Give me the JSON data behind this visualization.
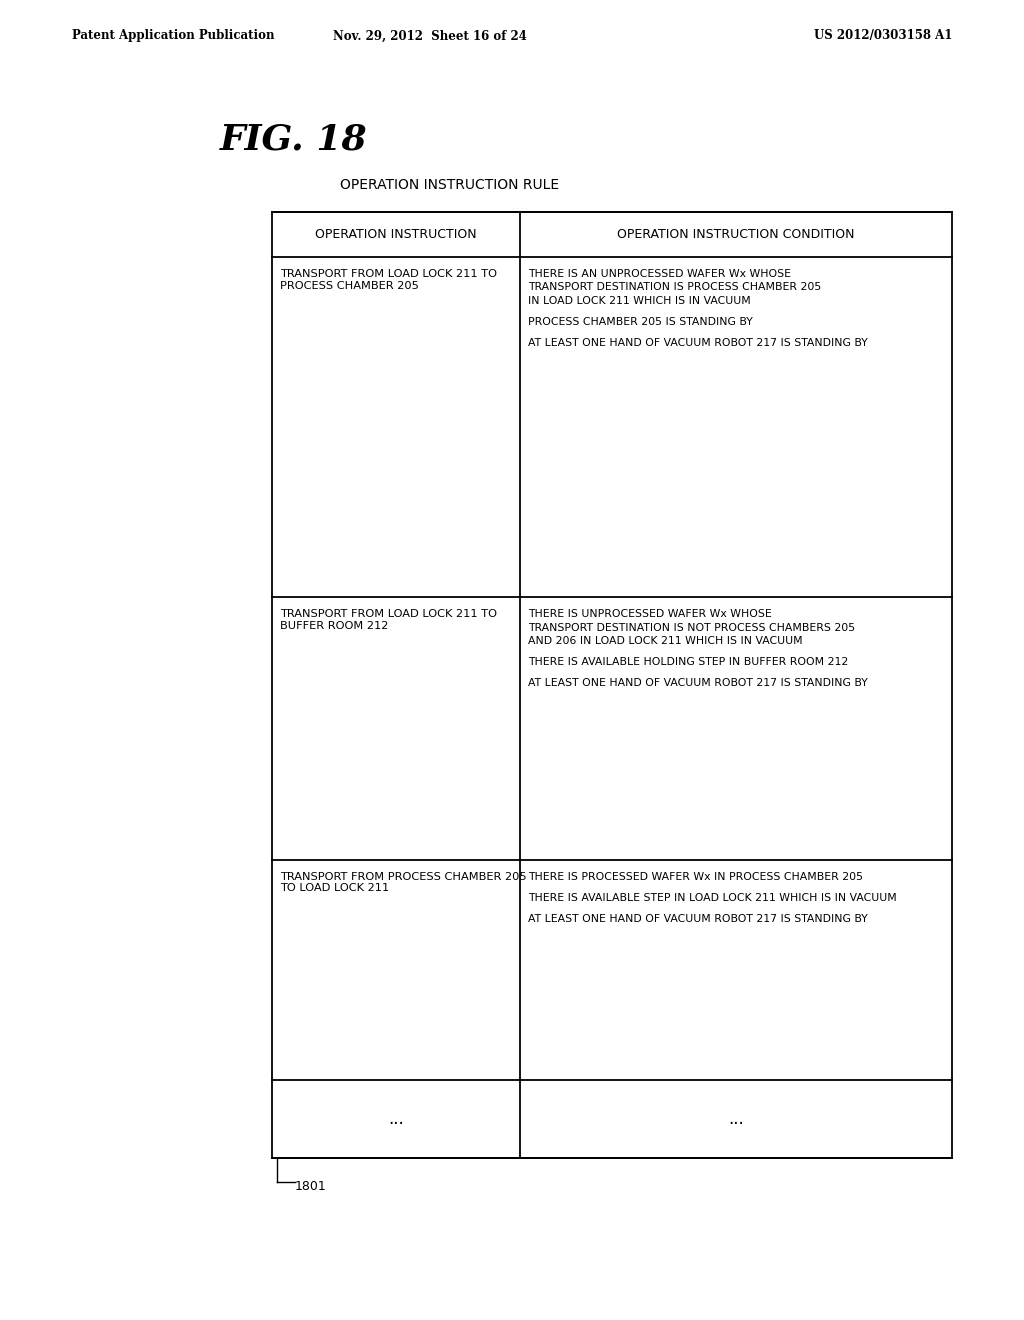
{
  "header_text_left": "Patent Application Publication",
  "header_text_mid": "Nov. 29, 2012  Sheet 16 of 24",
  "header_text_right": "US 2012/0303158 A1",
  "fig_label": "FIG. 18",
  "title": "OPERATION INSTRUCTION RULE",
  "table_label": "1801",
  "background_color": "#ffffff",
  "col1_header": "OPERATION INSTRUCTION",
  "col2_header": "OPERATION INSTRUCTION CONDITION",
  "rows": [
    {
      "col1": "TRANSPORT FROM LOAD LOCK 211 TO\nPROCESS CHAMBER 205",
      "col2_lines": [
        "THERE IS AN UNPROCESSED WAFER Wx WHOSE",
        "TRANSPORT DESTINATION IS PROCESS CHAMBER 205",
        "IN LOAD LOCK 211 WHICH IS IN VACUUM",
        "",
        "PROCESS CHAMBER 205 IS STANDING BY",
        "",
        "AT LEAST ONE HAND OF VACUUM ROBOT 217 IS STANDING BY"
      ]
    },
    {
      "col1": "TRANSPORT FROM LOAD LOCK 211 TO\nBUFFER ROOM 212",
      "col2_lines": [
        "THERE IS UNPROCESSED WAFER Wx WHOSE",
        "TRANSPORT DESTINATION IS NOT PROCESS CHAMBERS 205",
        "AND 206 IN LOAD LOCK 211 WHICH IS IN VACUUM",
        "",
        "THERE IS AVAILABLE HOLDING STEP IN BUFFER ROOM 212",
        "",
        "AT LEAST ONE HAND OF VACUUM ROBOT 217 IS STANDING BY"
      ]
    },
    {
      "col1": "TRANSPORT FROM PROCESS CHAMBER 205\nTO LOAD LOCK 211",
      "col2_lines": [
        "THERE IS PROCESSED WAFER Wx IN PROCESS CHAMBER 205",
        "",
        "THERE IS AVAILABLE STEP IN LOAD LOCK 211 WHICH IS IN VACUUM",
        "",
        "AT LEAST ONE HAND OF VACUUM ROBOT 217 IS STANDING BY"
      ]
    },
    {
      "col1": "...",
      "col2_lines": [
        "..."
      ]
    }
  ]
}
